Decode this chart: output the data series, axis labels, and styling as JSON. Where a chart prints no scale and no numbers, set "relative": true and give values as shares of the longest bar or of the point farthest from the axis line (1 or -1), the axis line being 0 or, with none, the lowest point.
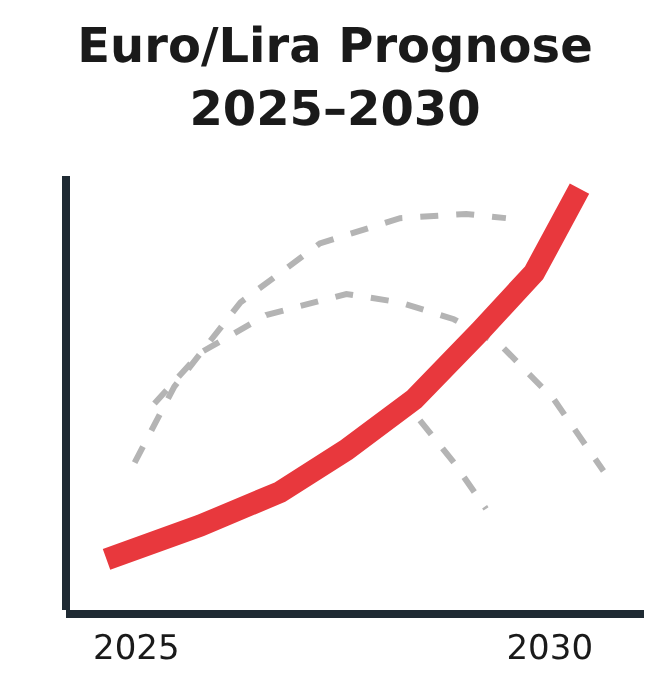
{
  "chart_data": {
    "type": "line",
    "title": "Euro/Lira Prognose\n2025–2030",
    "relative": true,
    "xlim": [
      2024.15,
      2031.14
    ],
    "xticks": [
      2025,
      2030
    ],
    "grid": false,
    "series": [
      {
        "color": "#e8383d",
        "x": [
          2024.64,
          2025.77,
          2026.74,
          2027.54,
          2028.36,
          2029.15,
          2029.81,
          2030.36
        ],
        "values": [
          0.12,
          0.2,
          0.28,
          0.38,
          0.5,
          0.66,
          0.8,
          1.0
        ]
      },
      {
        "color": "#b4b4b4",
        "line_style": "dashed",
        "x": [
          2024.98,
          2025.46,
          2026.26,
          2027.22,
          2028.19,
          2028.99,
          2029.47
        ],
        "values": [
          0.35,
          0.53,
          0.73,
          0.87,
          0.93,
          0.94,
          0.93
        ]
      },
      {
        "color": "#b4b4b4",
        "line_style": "dashed",
        "x": [
          2025.22,
          2025.77,
          2026.57,
          2027.54,
          2028.19,
          2028.84,
          2029.4,
          2030.05,
          2030.65
        ],
        "values": [
          0.49,
          0.61,
          0.7,
          0.75,
          0.73,
          0.69,
          0.63,
          0.5,
          0.33
        ]
      },
      {
        "color": "#b4b4b4",
        "line_style": "dashed",
        "x": [
          2028.43,
          2028.84,
          2029.23
        ],
        "values": [
          0.45,
          0.35,
          0.24
        ]
      }
    ]
  }
}
